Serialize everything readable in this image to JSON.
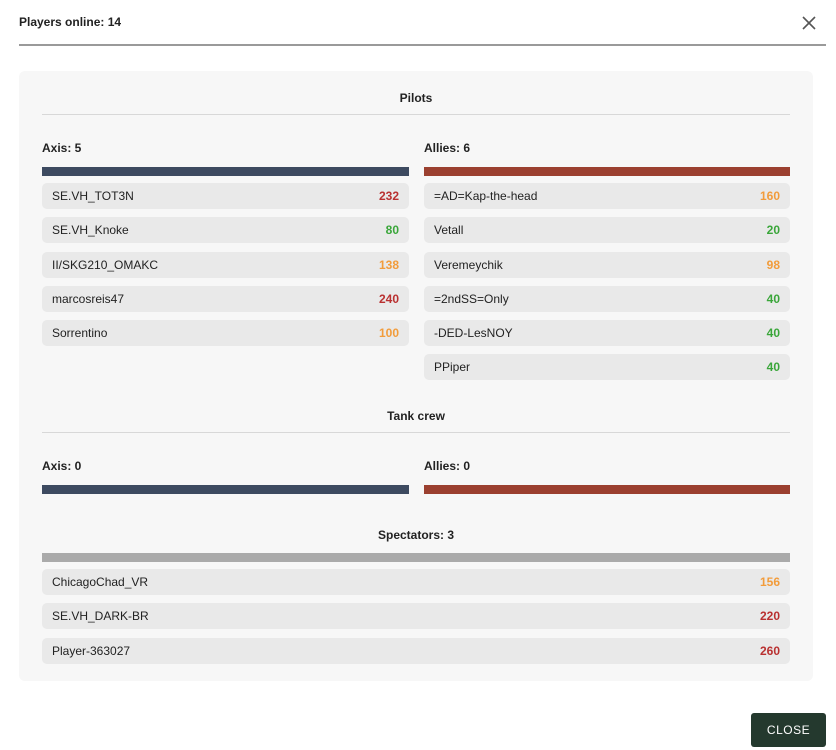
{
  "header": {
    "title": "Players online: 14"
  },
  "pilots": {
    "title": "Pilots",
    "axis": {
      "label": "Axis: 5",
      "players": [
        {
          "name": "SE.VH_TOT3N",
          "score": "232",
          "color": "red"
        },
        {
          "name": "SE.VH_Knoke",
          "score": "80",
          "color": "green"
        },
        {
          "name": "II/SKG210_OMAKC",
          "score": "138",
          "color": "orange"
        },
        {
          "name": "marcosreis47",
          "score": "240",
          "color": "red"
        },
        {
          "name": "Sorrentino",
          "score": "100",
          "color": "orange"
        }
      ]
    },
    "allies": {
      "label": "Allies: 6",
      "players": [
        {
          "name": "=AD=Kap-the-head",
          "score": "160",
          "color": "orange"
        },
        {
          "name": "Vetall",
          "score": "20",
          "color": "green"
        },
        {
          "name": "Veremeychik",
          "score": "98",
          "color": "orange"
        },
        {
          "name": "=2ndSS=Only",
          "score": "40",
          "color": "green"
        },
        {
          "name": "-DED-LesNOY",
          "score": "40",
          "color": "green"
        },
        {
          "name": "PPiper",
          "score": "40",
          "color": "green"
        }
      ]
    }
  },
  "tank_crew": {
    "title": "Tank crew",
    "axis": {
      "label": "Axis: 0"
    },
    "allies": {
      "label": "Allies: 0"
    }
  },
  "spectators": {
    "title": "Spectators: 3",
    "players": [
      {
        "name": "ChicagoChad_VR",
        "score": "156",
        "color": "orange"
      },
      {
        "name": "SE.VH_DARK-BR",
        "score": "220",
        "color": "red"
      },
      {
        "name": "Player-363027",
        "score": "260",
        "color": "red"
      }
    ]
  },
  "footer": {
    "close_label": "CLOSE"
  },
  "colors": {
    "axis_bar": "#3d4a60",
    "allies_bar": "#9b4030",
    "spectator_bar": "#aaaaaa",
    "score_red": "#b93030",
    "score_green": "#3aa63a",
    "score_orange": "#f29c3b",
    "close_button": "#24392e"
  },
  "icons": {
    "dismiss": "close-x-icon"
  }
}
